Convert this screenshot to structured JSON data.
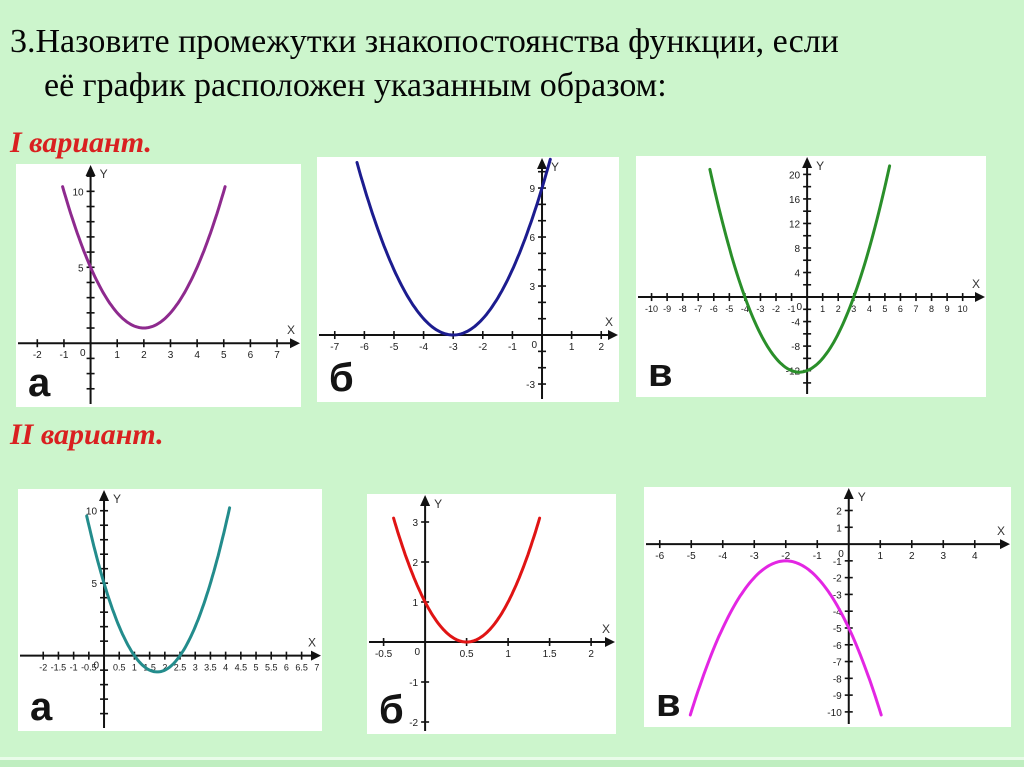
{
  "slide": {
    "title_line1": "3.Назовите промежутки знакопостоянства функции, если",
    "title_line2": "её график расположен указанным образом:",
    "variant1_label": "I вариант.",
    "variant2_label": "II вариант.",
    "background_color": "#ccf5cc",
    "accent_red": "#d92020"
  },
  "chart_data": [
    {
      "type": "line",
      "variant": "I",
      "panel_letter": "а",
      "curve": "parabola",
      "opens": "up",
      "color": "#8e2a8e",
      "parabola": {
        "a": 1,
        "h": 2,
        "k": 1
      },
      "vertex": [
        2,
        1
      ],
      "curve_x_range": [
        -1.05,
        5.05
      ],
      "x_axis": {
        "range": [
          -2.8,
          7.9
        ],
        "tick_step": 1,
        "labeled_ticks": [
          -2,
          -1,
          1,
          2,
          3,
          4,
          5,
          6,
          7
        ]
      },
      "y_axis": {
        "range": [
          -4.2,
          11.8
        ],
        "tick_step": 1,
        "labeled_ticks": [
          5,
          10
        ]
      },
      "origin_label": "0",
      "axis_titles": {
        "x": "X",
        "y": "Y"
      }
    },
    {
      "type": "line",
      "variant": "I",
      "panel_letter": "б",
      "curve": "parabola",
      "opens": "up",
      "color": "#1c1c8f",
      "parabola": {
        "a": 1,
        "h": -3,
        "k": 0
      },
      "vertex": [
        -3,
        0
      ],
      "curve_x_range": [
        -6.25,
        0.28
      ],
      "x_axis": {
        "range": [
          -7.6,
          2.6
        ],
        "tick_step": 1,
        "labeled_ticks": [
          -7,
          -6,
          -5,
          -4,
          -3,
          -2,
          -1,
          1,
          2
        ]
      },
      "y_axis": {
        "range": [
          -4.1,
          10.9
        ],
        "tick_step": 1,
        "labeled_ticks": [
          -3,
          3,
          6,
          9
        ]
      },
      "origin_label": "0",
      "axis_titles": {
        "x": "X",
        "y": "Y"
      }
    },
    {
      "type": "line",
      "variant": "I",
      "panel_letter": "в",
      "curve": "parabola",
      "opens": "up",
      "color": "#2a8f2a",
      "parabola": {
        "a": 1,
        "h": -0.5,
        "k": -12.25
      },
      "vertex": [
        -0.5,
        -12.25
      ],
      "x_intercepts": [
        -4,
        3
      ],
      "curve_x_range": [
        -6.25,
        5.3
      ],
      "x_axis": {
        "range": [
          -11,
          11.5
        ],
        "tick_step": 1,
        "labeled_ticks": [
          -10,
          -9,
          -8,
          -7,
          -6,
          -5,
          -4,
          -3,
          -2,
          -1,
          1,
          2,
          3,
          4,
          5,
          6,
          7,
          8,
          9,
          10
        ]
      },
      "y_axis": {
        "range": [
          -16.3,
          23
        ],
        "tick_step": 2,
        "labeled_ticks": [
          -12,
          -8,
          -4,
          4,
          8,
          12,
          16,
          20
        ]
      },
      "origin_label": "0",
      "axis_titles": {
        "x": "X",
        "y": "Y"
      }
    },
    {
      "type": "line",
      "variant": "II",
      "panel_letter": "а",
      "curve": "parabola",
      "opens": "up",
      "color": "#238c8c",
      "parabola": {
        "a": 2,
        "h": 1.75,
        "k": -1.125
      },
      "vertex": [
        1.75,
        -1.125
      ],
      "x_intercepts": [
        1,
        2.5
      ],
      "curve_x_range": [
        -0.57,
        4.13
      ],
      "x_axis": {
        "range": [
          -2.83,
          7.17
        ],
        "tick_step": 0.5,
        "labeled_ticks": [
          -2,
          -1.5,
          -1,
          -0.5,
          0.5,
          1,
          1.5,
          2,
          2.5,
          3,
          3.5,
          4,
          4.5,
          5,
          5.5,
          6,
          6.5,
          7
        ]
      },
      "y_axis": {
        "range": [
          -5.2,
          11.5
        ],
        "tick_step": 1,
        "labeled_ticks": [
          5,
          10
        ]
      },
      "origin_label": "0",
      "axis_titles": {
        "x": "X",
        "y": "Y"
      }
    },
    {
      "type": "line",
      "variant": "II",
      "panel_letter": "б",
      "curve": "parabola",
      "opens": "up",
      "color": "#e01414",
      "parabola": {
        "a": 4,
        "h": 0.5,
        "k": 0
      },
      "vertex": [
        0.5,
        0
      ],
      "curve_x_range": [
        -0.38,
        1.38
      ],
      "x_axis": {
        "range": [
          -0.7,
          2.3
        ],
        "tick_step": 0.5,
        "labeled_ticks": [
          -0.5,
          0.5,
          1,
          1.5,
          2
        ]
      },
      "y_axis": {
        "range": [
          -2.3,
          3.7
        ],
        "tick_step": 1,
        "labeled_ticks": [
          -2,
          -1,
          1,
          2,
          3
        ]
      },
      "origin_label": "0",
      "axis_titles": {
        "x": "X",
        "y": "Y"
      }
    },
    {
      "type": "line",
      "variant": "II",
      "panel_letter": "в",
      "curve": "parabola",
      "opens": "down",
      "color": "#e326e3",
      "parabola": {
        "a": -1,
        "h": -2,
        "k": -1
      },
      "vertex": [
        -2,
        -1
      ],
      "curve_x_range": [
        -5.03,
        1.03
      ],
      "x_axis": {
        "range": [
          -6.5,
          5.15
        ],
        "tick_step": 1,
        "labeled_ticks": [
          -6,
          -5,
          -4,
          -3,
          -2,
          -1,
          1,
          2,
          3,
          4
        ]
      },
      "y_axis": {
        "range": [
          -10.9,
          3.4
        ],
        "tick_step": 1,
        "labeled_ticks": [
          2,
          1,
          -1,
          -2,
          -3,
          -4,
          -5,
          -6,
          -7,
          -8,
          -9,
          -10
        ]
      },
      "origin_label": "0",
      "axis_titles": {
        "x": "X",
        "y": "Y"
      }
    }
  ]
}
